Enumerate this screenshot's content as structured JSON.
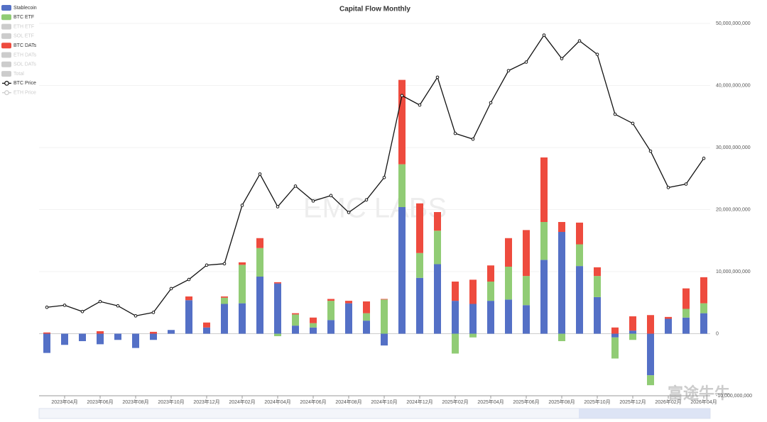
{
  "chart_data": {
    "type": "bar",
    "title": "Capital Flow Monthly",
    "watermark": "EMC LABS",
    "corner_watermark": "富途牛牛",
    "categories": [
      null,
      "2023年04月",
      null,
      "2023年06月",
      null,
      "2023年08月",
      null,
      "2023年10月",
      null,
      "2023年12月",
      null,
      "2024年02月",
      null,
      "2024年04月",
      null,
      "2024年06月",
      null,
      "2024年08月",
      null,
      "2024年10月",
      null,
      "2024年12月",
      null,
      "2025年02月",
      null,
      "2025年04月",
      null,
      "2025年06月",
      null,
      "2025年08月",
      null,
      "2025年10月",
      null,
      "2025年12月",
      null,
      "2026年02月",
      null,
      "2026年04月"
    ],
    "series": [
      {
        "name": "Stablecoin",
        "color": "#5470c6",
        "stack": true,
        "values": [
          -3100000000.0,
          -1800000000.0,
          -1200000000.0,
          -1700000000.0,
          -1000000000.0,
          -2300000000.0,
          -1000000000.0,
          600000000.0,
          5400000000.0,
          1000000000.0,
          4800000000.0,
          4900000000.0,
          9200000000.0,
          8100000000.0,
          1300000000.0,
          1000000000.0,
          2200000000.0,
          4900000000.0,
          2100000000.0,
          -1900000000.0,
          20400000000.0,
          9000000000.0,
          11200000000.0,
          5300000000.0,
          4800000000.0,
          5300000000.0,
          5500000000.0,
          4600000000.0,
          11900000000.0,
          16400000000.0,
          10900000000.0,
          5900000000.0,
          -600000000.0,
          500000000.0,
          -6700000000.0,
          2400000000.0,
          2600000000.0,
          3300000000.0
        ]
      },
      {
        "name": "BTC ETF",
        "color": "#91cc75",
        "stack": true,
        "values": [
          0,
          0,
          0,
          0,
          0,
          0,
          0,
          0,
          0,
          0,
          1000000000.0,
          6200000000.0,
          4600000000.0,
          -400000000.0,
          1800000000.0,
          700000000.0,
          3100000000.0,
          0,
          1200000000.0,
          5500000000.0,
          6900000000.0,
          4000000000.0,
          5400000000.0,
          -3200000000.0,
          -600000000.0,
          3100000000.0,
          5300000000.0,
          4700000000.0,
          6100000000.0,
          -1200000000.0,
          3500000000.0,
          3400000000.0,
          -3400000000.0,
          -1000000000.0,
          -1600000000.0,
          0,
          1400000000.0,
          1600000000.0
        ]
      },
      {
        "name": "ETH ETF",
        "hidden": true
      },
      {
        "name": "SOL ETF",
        "hidden": true
      },
      {
        "name": "BTC DATs",
        "color": "#ee4b3e",
        "stack": true,
        "values": [
          200000000.0,
          0,
          0,
          400000000.0,
          0,
          0,
          300000000.0,
          0,
          600000000.0,
          800000000.0,
          200000000.0,
          400000000.0,
          1600000000.0,
          200000000.0,
          200000000.0,
          900000000.0,
          300000000.0,
          400000000.0,
          1900000000.0,
          100000000.0,
          13600000000.0,
          8000000000.0,
          3000000000.0,
          3100000000.0,
          3900000000.0,
          2600000000.0,
          4600000000.0,
          7400000000.0,
          10400000000.0,
          1600000000.0,
          3500000000.0,
          1400000000.0,
          1000000000.0,
          2300000000.0,
          3000000000.0,
          300000000.0,
          3300000000.0,
          4200000000.0
        ]
      },
      {
        "name": "ETH DATs",
        "hidden": true
      },
      {
        "name": "SOL DATs",
        "hidden": true
      },
      {
        "name": "Total",
        "hidden": true
      },
      {
        "name": "BTC Price",
        "type": "line",
        "axis": "y2",
        "color": "#111111",
        "values": [
          22900,
          23600,
          21400,
          24900,
          23400,
          19900,
          21100,
          29400,
          32600,
          37600,
          38100,
          58500,
          69400,
          58000,
          65200,
          60000,
          61900,
          56000,
          60400,
          68200,
          96800,
          93500,
          103200,
          83600,
          81600,
          94300,
          105500,
          108500,
          117900,
          109700,
          115900,
          111200,
          90300,
          87100,
          77400,
          64700,
          65900,
          74900
        ]
      },
      {
        "name": "ETH Price",
        "type": "line",
        "axis": "y2",
        "hidden": true
      }
    ],
    "ylim": [
      -10000000000,
      50000000000
    ],
    "yticks": [
      {
        "value": -10000000000,
        "label": "-10,000,000,000"
      },
      0,
      {
        "value": 10000000000,
        "label": "10,000,000,000"
      },
      {
        "value": 20000000000,
        "label": "20,000,000,000"
      },
      {
        "value": 30000000000,
        "label": "30,000,000,000"
      },
      {
        "value": 40000000000,
        "label": "40,000,000,000"
      },
      {
        "value": 50000000000,
        "label": "50,000,000,000"
      }
    ],
    "y2lim": [
      -8000,
      122000
    ],
    "grid": true,
    "legend": "top-left"
  }
}
